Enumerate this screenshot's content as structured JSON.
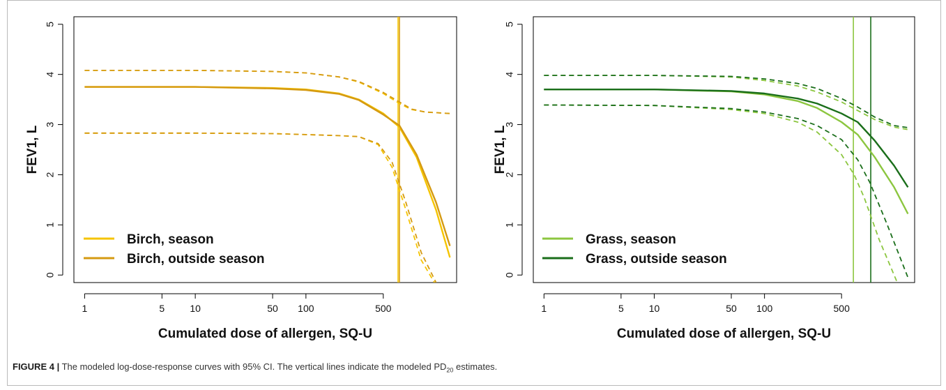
{
  "caption": {
    "label": "FIGURE 4 |",
    "text_before": "The modeled log-dose-response curves with 95% CI. The vertical lines indicate the modeled PD",
    "subscript": "20",
    "text_after": " estimates."
  },
  "chart_data": [
    {
      "type": "line",
      "xlabel": "Cumulated dose of allergen, SQ-U",
      "ylabel": "FEV1, L",
      "xscale": "log",
      "xlim": [
        0.8,
        2300
      ],
      "ylim": [
        -0.15,
        5.15
      ],
      "xticks": [
        1,
        5,
        10,
        50,
        100,
        500
      ],
      "yticks": [
        0,
        1,
        2,
        3,
        4,
        5
      ],
      "grid": false,
      "legend": "bottom-left",
      "series": [
        {
          "name": "Birch, season",
          "color": "#f5c400",
          "style": "solid",
          "x": [
            1,
            10,
            50,
            100,
            200,
            300,
            500,
            700,
            1000,
            1500,
            2000
          ],
          "y": [
            3.75,
            3.75,
            3.73,
            3.7,
            3.62,
            3.5,
            3.22,
            2.95,
            2.35,
            1.3,
            0.35
          ]
        },
        {
          "name": "Birch, outside season",
          "color": "#d59a12",
          "style": "solid",
          "x": [
            1,
            10,
            50,
            100,
            200,
            300,
            500,
            700,
            1000,
            1500,
            2000
          ],
          "y": [
            3.75,
            3.75,
            3.72,
            3.69,
            3.61,
            3.49,
            3.2,
            2.98,
            2.4,
            1.45,
            0.58
          ]
        },
        {
          "name": "Birch, season upper 95% CI",
          "color": "#f5c400",
          "style": "dashed",
          "x": [
            1,
            10,
            50,
            100,
            200,
            300,
            500,
            700,
            900,
            1200,
            2000
          ],
          "y": [
            4.08,
            4.08,
            4.06,
            4.03,
            3.95,
            3.85,
            3.62,
            3.42,
            3.3,
            3.25,
            3.22
          ]
        },
        {
          "name": "Birch, outside season upper 95% CI",
          "color": "#d59a12",
          "style": "dashed",
          "x": [
            1,
            10,
            50,
            100,
            200,
            300,
            500,
            700,
            900,
            1200,
            2000
          ],
          "y": [
            4.08,
            4.08,
            4.06,
            4.03,
            3.95,
            3.86,
            3.64,
            3.45,
            3.31,
            3.25,
            3.22
          ]
        },
        {
          "name": "Birch, season lower 95% CI",
          "color": "#f5c400",
          "style": "dashed",
          "x": [
            1,
            10,
            50,
            100,
            200,
            300,
            450,
            600,
            800,
            1100,
            1450
          ],
          "y": [
            2.83,
            2.83,
            2.82,
            2.8,
            2.78,
            2.76,
            2.6,
            2.15,
            1.3,
            0.3,
            -0.15
          ]
        },
        {
          "name": "Birch, outside season lower 95% CI",
          "color": "#d59a12",
          "style": "dashed",
          "x": [
            1,
            10,
            50,
            100,
            200,
            300,
            450,
            600,
            800,
            1100,
            1500
          ],
          "y": [
            2.83,
            2.83,
            2.82,
            2.8,
            2.78,
            2.76,
            2.62,
            2.25,
            1.45,
            0.45,
            -0.15
          ]
        }
      ],
      "vlines": [
        {
          "name": "Birch, season PD20",
          "x": 680,
          "color": "#f5c400"
        },
        {
          "name": "Birch, outside season PD20",
          "x": 700,
          "color": "#d59a12"
        }
      ]
    },
    {
      "type": "line",
      "xlabel": "Cumulated dose of allergen, SQ-U",
      "ylabel": "FEV1, L",
      "xscale": "log",
      "xlim": [
        0.8,
        2300
      ],
      "ylim": [
        -0.15,
        5.15
      ],
      "xticks": [
        1,
        5,
        10,
        50,
        100,
        500
      ],
      "yticks": [
        0,
        1,
        2,
        3,
        4,
        5
      ],
      "grid": false,
      "legend": "bottom-left",
      "series": [
        {
          "name": "Grass, season",
          "color": "#8cc63f",
          "style": "solid",
          "x": [
            1,
            10,
            50,
            100,
            200,
            300,
            500,
            700,
            1000,
            1500,
            2000
          ],
          "y": [
            3.7,
            3.7,
            3.66,
            3.6,
            3.47,
            3.33,
            3.05,
            2.8,
            2.35,
            1.75,
            1.22
          ]
        },
        {
          "name": "Grass, outside season",
          "color": "#1a6e1a",
          "style": "solid",
          "x": [
            1,
            10,
            50,
            100,
            200,
            300,
            500,
            700,
            1000,
            1500,
            2000
          ],
          "y": [
            3.7,
            3.7,
            3.67,
            3.62,
            3.52,
            3.42,
            3.22,
            3.05,
            2.68,
            2.18,
            1.75
          ]
        },
        {
          "name": "Grass, season upper 95% CI",
          "color": "#8cc63f",
          "style": "dashed",
          "x": [
            1,
            10,
            50,
            100,
            200,
            300,
            500,
            700,
            1000,
            1500,
            2000
          ],
          "y": [
            3.98,
            3.98,
            3.95,
            3.88,
            3.77,
            3.65,
            3.45,
            3.28,
            3.1,
            2.95,
            2.9
          ]
        },
        {
          "name": "Grass, outside season upper 95% CI",
          "color": "#1a6e1a",
          "style": "dashed",
          "x": [
            1,
            10,
            50,
            100,
            200,
            300,
            500,
            700,
            1000,
            1500,
            2000
          ],
          "y": [
            3.98,
            3.98,
            3.96,
            3.91,
            3.82,
            3.72,
            3.52,
            3.35,
            3.15,
            2.98,
            2.94
          ]
        },
        {
          "name": "Grass, season lower 95% CI",
          "color": "#8cc63f",
          "style": "dashed",
          "x": [
            1,
            10,
            50,
            100,
            200,
            300,
            500,
            650,
            800,
            1100,
            1600
          ],
          "y": [
            3.39,
            3.38,
            3.3,
            3.22,
            3.05,
            2.85,
            2.4,
            2.0,
            1.55,
            0.7,
            -0.15
          ]
        },
        {
          "name": "Grass, outside season lower 95% CI",
          "color": "#1a6e1a",
          "style": "dashed",
          "x": [
            1,
            10,
            50,
            100,
            200,
            300,
            500,
            700,
            900,
            1300,
            2000
          ],
          "y": [
            3.39,
            3.38,
            3.32,
            3.25,
            3.12,
            2.98,
            2.7,
            2.3,
            1.85,
            1.0,
            -0.05
          ]
        }
      ],
      "vlines": [
        {
          "name": "Grass, season PD20",
          "x": 640,
          "color": "#8cc63f"
        },
        {
          "name": "Grass, outside season PD20",
          "x": 920,
          "color": "#1a6e1a"
        }
      ]
    }
  ],
  "legends": [
    [
      {
        "label": "Birch, season",
        "color": "#f5c400"
      },
      {
        "label": "Birch, outside season",
        "color": "#d59a12"
      }
    ],
    [
      {
        "label": "Grass, season",
        "color": "#8cc63f"
      },
      {
        "label": "Grass, outside season",
        "color": "#1a6e1a"
      }
    ]
  ]
}
